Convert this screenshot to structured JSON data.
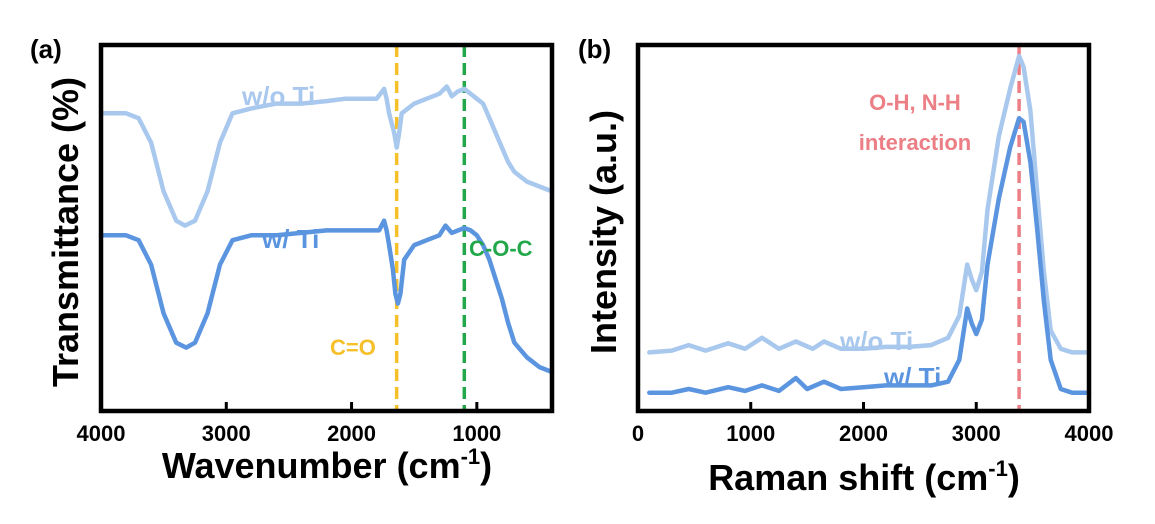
{
  "chart_data": [
    {
      "type": "line",
      "panel_label": "(a)",
      "xlabel": "Wavenumber (cm",
      "xlabel_sup": "-1",
      "xlabel_close": ")",
      "ylabel": "Transmittance (%)",
      "xlim": [
        4000,
        400
      ],
      "x_reversed": true,
      "xticks": [
        4000,
        3000,
        2000,
        1000
      ],
      "y_ticks_shown": false,
      "grid": false,
      "series": [
        {
          "name": "w/o Ti",
          "color": "#a9c8ee",
          "points": [
            [
              4000,
              86
            ],
            [
              3800,
              86
            ],
            [
              3700,
              85
            ],
            [
              3600,
              80
            ],
            [
              3500,
              70
            ],
            [
              3400,
              64
            ],
            [
              3330,
              63
            ],
            [
              3250,
              64
            ],
            [
              3150,
              70
            ],
            [
              3050,
              80
            ],
            [
              2950,
              86
            ],
            [
              2800,
              87
            ],
            [
              2600,
              88
            ],
            [
              2400,
              88
            ],
            [
              2200,
              88.5
            ],
            [
              2050,
              89
            ],
            [
              1900,
              89
            ],
            [
              1800,
              89
            ],
            [
              1740,
              91
            ],
            [
              1720,
              89
            ],
            [
              1700,
              86
            ],
            [
              1660,
              82
            ],
            [
              1640,
              79
            ],
            [
              1620,
              82
            ],
            [
              1600,
              86
            ],
            [
              1500,
              88
            ],
            [
              1400,
              89
            ],
            [
              1300,
              90
            ],
            [
              1240,
              91.5
            ],
            [
              1200,
              89.5
            ],
            [
              1150,
              90.5
            ],
            [
              1100,
              91
            ],
            [
              1050,
              90
            ],
            [
              1000,
              89
            ],
            [
              950,
              88
            ],
            [
              900,
              85
            ],
            [
              850,
              82
            ],
            [
              800,
              79
            ],
            [
              750,
              76
            ],
            [
              700,
              74
            ],
            [
              600,
              72
            ],
            [
              500,
              71
            ],
            [
              400,
              70
            ]
          ]
        },
        {
          "name": "w/ Ti",
          "color": "#5b95e0",
          "points": [
            [
              4000,
              61
            ],
            [
              3800,
              61
            ],
            [
              3700,
              60
            ],
            [
              3600,
              55
            ],
            [
              3500,
              45
            ],
            [
              3400,
              39
            ],
            [
              3320,
              38
            ],
            [
              3250,
              39
            ],
            [
              3150,
              45
            ],
            [
              3050,
              55
            ],
            [
              2950,
              60
            ],
            [
              2800,
              61
            ],
            [
              2600,
              61
            ],
            [
              2400,
              61.5
            ],
            [
              2200,
              62
            ],
            [
              2000,
              62
            ],
            [
              1850,
              62
            ],
            [
              1780,
              62
            ],
            [
              1740,
              64
            ],
            [
              1720,
              62
            ],
            [
              1700,
              59
            ],
            [
              1670,
              54
            ],
            [
              1650,
              49
            ],
            [
              1630,
              47
            ],
            [
              1610,
              49
            ],
            [
              1580,
              56
            ],
            [
              1500,
              59
            ],
            [
              1400,
              60
            ],
            [
              1300,
              61
            ],
            [
              1250,
              63
            ],
            [
              1200,
              61.5
            ],
            [
              1150,
              62
            ],
            [
              1100,
              62.5
            ],
            [
              1050,
              62
            ],
            [
              1000,
              61
            ],
            [
              950,
              59
            ],
            [
              900,
              56
            ],
            [
              850,
              52
            ],
            [
              800,
              48
            ],
            [
              750,
              43
            ],
            [
              700,
              39
            ],
            [
              600,
              36
            ],
            [
              500,
              34
            ],
            [
              400,
              33
            ]
          ]
        }
      ],
      "annotations": [
        {
          "text": "C=O",
          "x": 1640,
          "color": "#f5c02a"
        },
        {
          "text": "C-O-C",
          "x": 1100,
          "color": "#22a84a"
        }
      ],
      "series_labels": [
        {
          "text": "w/o Ti",
          "color": "#a9c8ee"
        },
        {
          "text": "w/ Ti",
          "color": "#5b95e0"
        }
      ]
    },
    {
      "type": "line",
      "panel_label": "(b)",
      "xlabel": "Raman shift (cm",
      "xlabel_sup": "-1",
      "xlabel_close": ")",
      "ylabel": "Intensity (a.u.)",
      "xlim": [
        0,
        4000
      ],
      "xticks": [
        0,
        1000,
        2000,
        3000,
        4000
      ],
      "y_ticks_shown": false,
      "grid": false,
      "series": [
        {
          "name": "w/o Ti",
          "color": "#a9c8ee",
          "points": [
            [
              100,
              16
            ],
            [
              300,
              16.5
            ],
            [
              450,
              18
            ],
            [
              600,
              16.5
            ],
            [
              800,
              18.5
            ],
            [
              950,
              17
            ],
            [
              1100,
              20
            ],
            [
              1250,
              17
            ],
            [
              1400,
              19
            ],
            [
              1550,
              17
            ],
            [
              1650,
              19
            ],
            [
              1800,
              17
            ],
            [
              2000,
              17
            ],
            [
              2200,
              17.5
            ],
            [
              2400,
              17.5
            ],
            [
              2600,
              18
            ],
            [
              2750,
              20
            ],
            [
              2850,
              26
            ],
            [
              2920,
              40
            ],
            [
              2960,
              36
            ],
            [
              3000,
              33
            ],
            [
              3050,
              38
            ],
            [
              3100,
              55
            ],
            [
              3200,
              75
            ],
            [
              3300,
              88
            ],
            [
              3380,
              97
            ],
            [
              3420,
              94
            ],
            [
              3480,
              82
            ],
            [
              3540,
              60
            ],
            [
              3600,
              38
            ],
            [
              3660,
              22
            ],
            [
              3750,
              17
            ],
            [
              3850,
              16
            ],
            [
              4000,
              16
            ]
          ]
        },
        {
          "name": "w/ Ti",
          "color": "#5b95e0",
          "points": [
            [
              100,
              5
            ],
            [
              300,
              5
            ],
            [
              450,
              6
            ],
            [
              600,
              5
            ],
            [
              800,
              6.5
            ],
            [
              950,
              5.5
            ],
            [
              1100,
              7
            ],
            [
              1250,
              5.5
            ],
            [
              1400,
              9
            ],
            [
              1500,
              6
            ],
            [
              1650,
              8
            ],
            [
              1800,
              6
            ],
            [
              2000,
              6.5
            ],
            [
              2200,
              7
            ],
            [
              2400,
              7
            ],
            [
              2600,
              7
            ],
            [
              2750,
              8
            ],
            [
              2850,
              14
            ],
            [
              2920,
              28
            ],
            [
              2960,
              24
            ],
            [
              3000,
              21
            ],
            [
              3050,
              25
            ],
            [
              3100,
              40
            ],
            [
              3200,
              58
            ],
            [
              3300,
              72
            ],
            [
              3380,
              80
            ],
            [
              3420,
              79
            ],
            [
              3480,
              68
            ],
            [
              3540,
              50
            ],
            [
              3600,
              30
            ],
            [
              3660,
              14
            ],
            [
              3750,
              6
            ],
            [
              3850,
              5
            ],
            [
              4000,
              5
            ]
          ]
        }
      ],
      "annotations": [
        {
          "text_line1": "O-H, N-H",
          "text_line2": "interaction",
          "x": 3380,
          "color": "#ec7f85"
        }
      ],
      "series_labels": [
        {
          "text": "w/o Ti",
          "color": "#a9c8ee"
        },
        {
          "text": "w/ Ti",
          "color": "#5b95e0"
        }
      ]
    }
  ]
}
